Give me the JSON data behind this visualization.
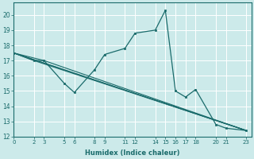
{
  "xlabel": "Humidex (Indice chaleur)",
  "bg_color": "#cceaea",
  "grid_color": "#aacccc",
  "line_color": "#1a6b6b",
  "main_series": {
    "x": [
      0,
      2,
      3,
      5,
      6,
      8,
      9,
      11,
      12,
      14,
      15,
      16,
      17,
      18,
      20,
      21,
      23
    ],
    "y": [
      17.5,
      17.0,
      17.0,
      15.5,
      14.9,
      16.4,
      17.4,
      17.8,
      18.8,
      19.0,
      20.3,
      15.0,
      14.6,
      15.1,
      12.8,
      12.55,
      12.4
    ]
  },
  "straight_lines": [
    {
      "x": [
        0,
        23
      ],
      "y": [
        17.5,
        12.4
      ]
    },
    {
      "x": [
        0,
        23
      ],
      "y": [
        17.5,
        12.4
      ]
    },
    {
      "x": [
        0,
        3,
        23
      ],
      "y": [
        17.5,
        17.0,
        12.4
      ]
    },
    {
      "x": [
        0,
        2,
        23
      ],
      "y": [
        17.5,
        17.0,
        12.4
      ]
    }
  ],
  "xlim": [
    0,
    23.5
  ],
  "ylim": [
    12,
    20.8
  ],
  "yticks": [
    12,
    13,
    14,
    15,
    16,
    17,
    18,
    19,
    20
  ],
  "xticks": [
    0,
    2,
    3,
    5,
    6,
    8,
    9,
    11,
    12,
    14,
    15,
    16,
    17,
    18,
    20,
    21,
    23
  ]
}
